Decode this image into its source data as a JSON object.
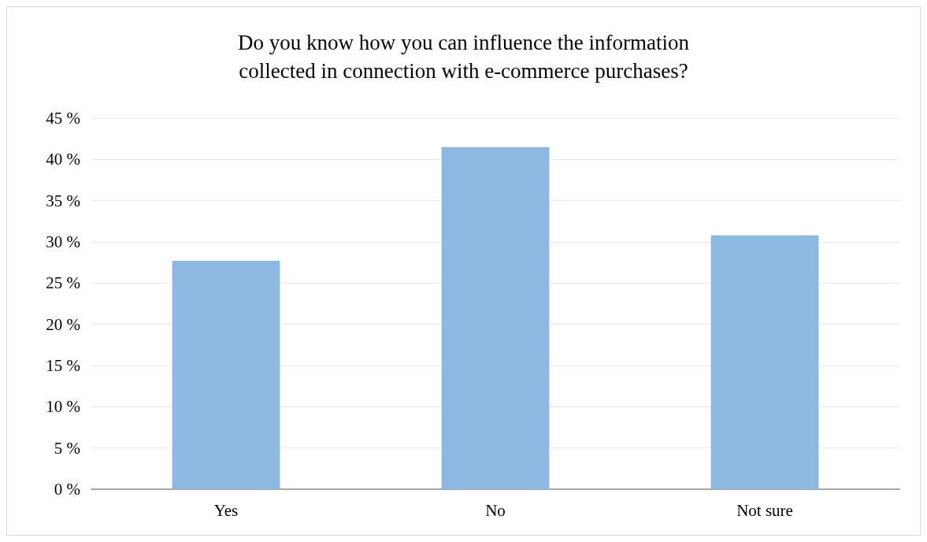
{
  "chart_data": {
    "type": "bar",
    "title": "Do you know how you can influence the information\ncollected in connection with e-commerce purchases?",
    "categories": [
      "Yes",
      "No",
      "Not sure"
    ],
    "values": [
      27.7,
      41.5,
      30.8
    ],
    "color": "#8db8e2",
    "ylim": [
      0,
      45
    ],
    "yticks": [
      {
        "value": 0,
        "label": "0 %"
      },
      {
        "value": 5,
        "label": "5 %"
      },
      {
        "value": 10,
        "label": "10 %"
      },
      {
        "value": 15,
        "label": "15 %"
      },
      {
        "value": 20,
        "label": "20 %"
      },
      {
        "value": 25,
        "label": "25 %"
      },
      {
        "value": 30,
        "label": "30 %"
      },
      {
        "value": 35,
        "label": "35 %"
      },
      {
        "value": 40,
        "label": "40 %"
      },
      {
        "value": 45,
        "label": "45 %"
      }
    ],
    "grid": true
  }
}
